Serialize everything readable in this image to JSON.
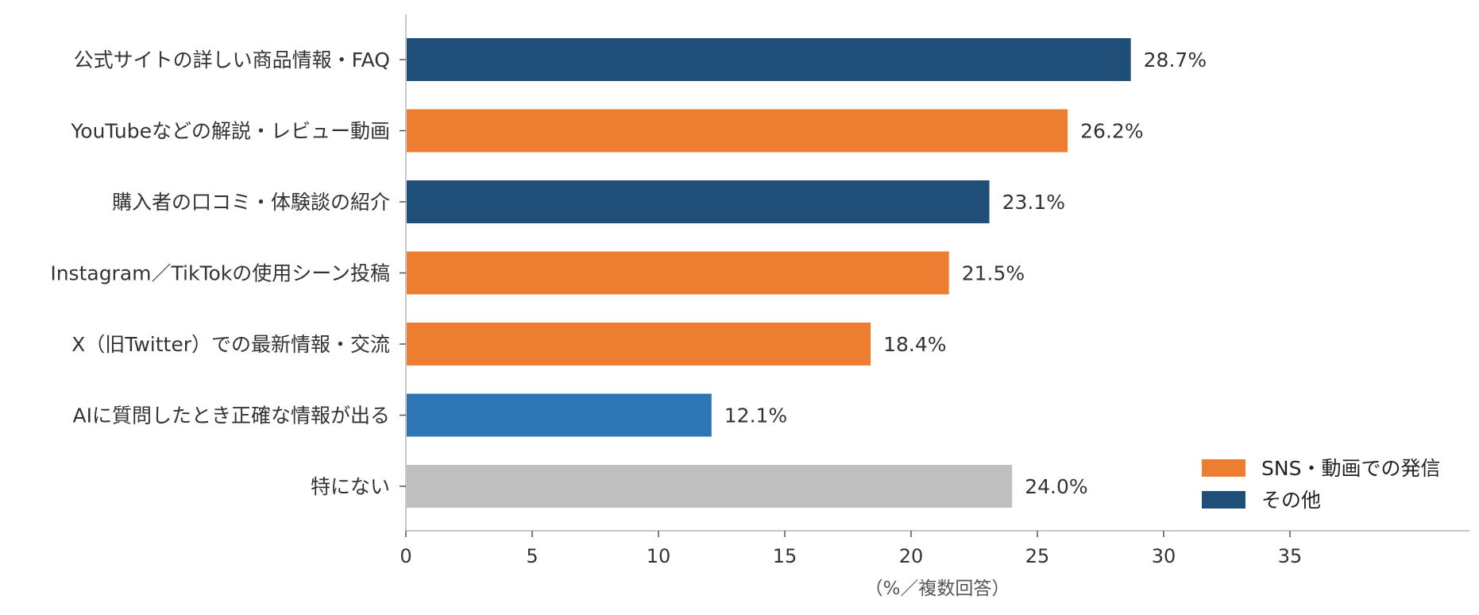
{
  "chart_data": {
    "type": "bar",
    "orientation": "horizontal",
    "categories": [
      "公式サイトの詳しい商品情報・FAQ",
      "YouTubeなどの解説・レビュー動画",
      "購入者の口コミ・体験談の紹介",
      "Instagram／TikTokの使用シーン投稿",
      "X（旧Twitter）での最新情報・交流",
      "AIに質問したとき正確な情報が出る",
      "特にない"
    ],
    "values": [
      28.7,
      26.2,
      23.1,
      21.5,
      18.4,
      12.1,
      24.0
    ],
    "value_labels": [
      "28.7%",
      "26.2%",
      "23.1%",
      "21.5%",
      "18.4%",
      "12.1%",
      "24.0%"
    ],
    "bar_colors": [
      "#1f4e79",
      "#ed7d31",
      "#1f4e79",
      "#ed7d31",
      "#ed7d31",
      "#2e75b6",
      "#bfbfbf"
    ],
    "xlabel": "（%／複数回答）",
    "ylabel": "",
    "xlim": [
      0,
      42
    ],
    "xticks": [
      0,
      5,
      10,
      15,
      20,
      25,
      30,
      35
    ],
    "grid": false,
    "legend": {
      "position": "bottom-right",
      "items": [
        {
          "label": "SNS・動画での発信",
          "color": "#ed7d31"
        },
        {
          "label": "その他",
          "color": "#1f4e79"
        }
      ]
    }
  }
}
